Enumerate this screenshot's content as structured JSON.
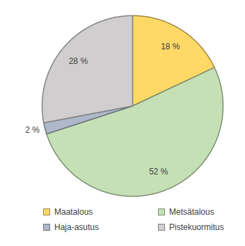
{
  "chart_data": {
    "type": "pie",
    "categories": [
      "Maatalous",
      "Metsätalous",
      "Haja-asutus",
      "Pistekuormitus"
    ],
    "values": [
      18,
      52,
      2,
      28
    ],
    "value_labels": [
      "18 %",
      "52 %",
      "2 %",
      "28 %"
    ],
    "colors": [
      "#ffd966",
      "#c5e0b4",
      "#adb9ca",
      "#d0cece"
    ],
    "data_labels": true,
    "legend": "bottom"
  }
}
